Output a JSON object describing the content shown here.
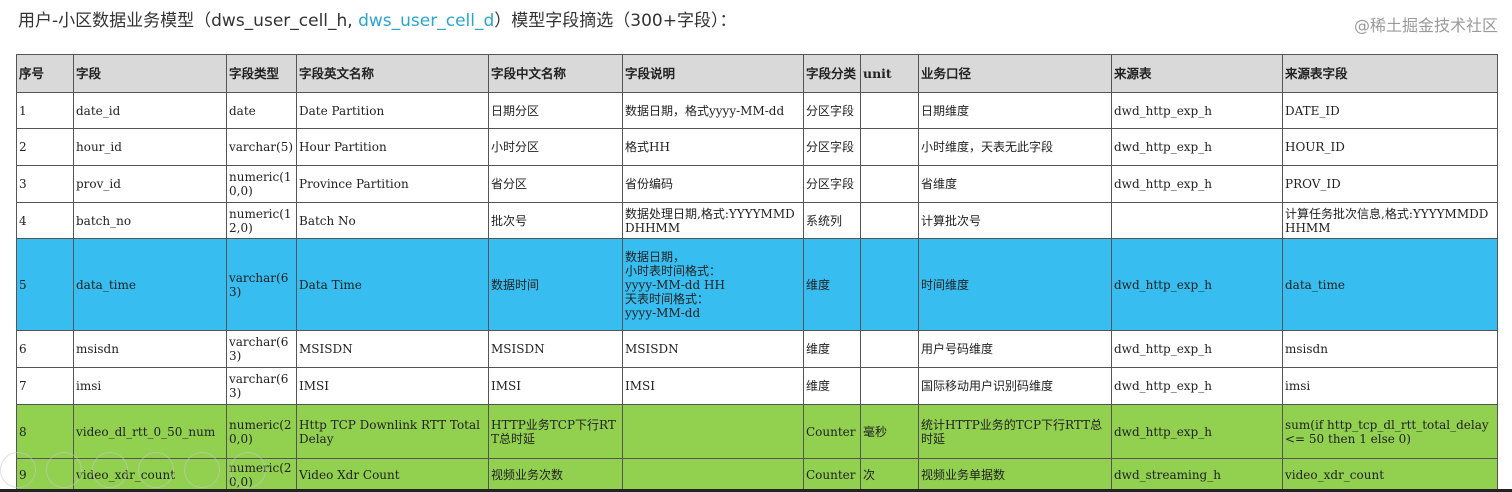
{
  "title": {
    "prefix": "用户-小区数据业务模型（dws_user_cell_h, ",
    "link": "dws_user_cell_d",
    "suffix": "）模型字段摘选（300+字段）："
  },
  "headers": [
    "序号",
    "字段",
    "字段类型",
    "字段英文名称",
    "字段中文名称",
    "字段说明",
    "字段分类",
    "unit",
    "业务口径",
    "来源表",
    "来源表字段"
  ],
  "rows": [
    [
      "1",
      "date_id",
      "date",
      "Date Partition",
      "日期分区",
      "数据日期，格式yyyy-MM-dd",
      "分区字段",
      "",
      "日期维度",
      "dwd_http_exp_h",
      "DATE_ID"
    ],
    [
      "2",
      "hour_id",
      "varchar(5)",
      "Hour Partition",
      "小时分区",
      "格式HH",
      "分区字段",
      "",
      "小时维度，天表无此字段",
      "dwd_http_exp_h",
      "HOUR_ID"
    ],
    [
      "3",
      "prov_id",
      "numeric(10,0)",
      "Province Partition",
      "省分区",
      "省份编码",
      "分区字段",
      "",
      "省维度",
      "dwd_http_exp_h",
      "PROV_ID"
    ],
    [
      "4",
      "batch_no",
      "numeric(12,0)",
      "Batch No",
      "批次号",
      "数据处理日期,格式:YYYYMMDDHHMM",
      "系统列",
      "",
      "计算批次号",
      "",
      "计算任务批次信息,格式:YYYYMMDDHHMM"
    ],
    [
      "5",
      "data_time",
      "varchar(63)",
      "Data Time",
      "数据时间",
      "数据日期，\n小时表时间格式：\nyyyy-MM-dd HH\n天表时间格式：\nyyyy-MM-dd",
      "维度",
      "",
      "时间维度",
      "dwd_http_exp_h",
      "data_time"
    ],
    [
      "6",
      "msisdn",
      "varchar(63)",
      "MSISDN",
      "MSISDN",
      "MSISDN",
      "维度",
      "",
      "用户号码维度",
      "dwd_http_exp_h",
      "msisdn"
    ],
    [
      "7",
      "imsi",
      "varchar(63)",
      "IMSI",
      "IMSI",
      "IMSI",
      "维度",
      "",
      "国际移动用户识别码维度",
      "dwd_http_exp_h",
      "imsi"
    ],
    [
      "8",
      "video_dl_rtt_0_50_num",
      "numeric(20,0)",
      "Http TCP Downlink RTT Total Delay",
      "HTTP业务TCP下行RTT总时延",
      "",
      "Counter",
      "毫秒",
      "统计HTTP业务的TCP下行RTT总时延",
      "dwd_http_exp_h",
      "sum(if http_tcp_dl_rtt_total_delay <= 50 then 1 else 0)"
    ],
    [
      "9",
      "video_xdr_count",
      "numeric(20,0)",
      "Video Xdr Count",
      "视频业务次数",
      "",
      "Counter",
      "次",
      "视频业务单据数",
      "dwd_streaming_h",
      "video_xdr_count"
    ]
  ],
  "row_highlight": {
    "5": "#37bdf0",
    "8": "#92d050",
    "9": "#92d050"
  },
  "watermark": "@稀土掘金技术社区"
}
